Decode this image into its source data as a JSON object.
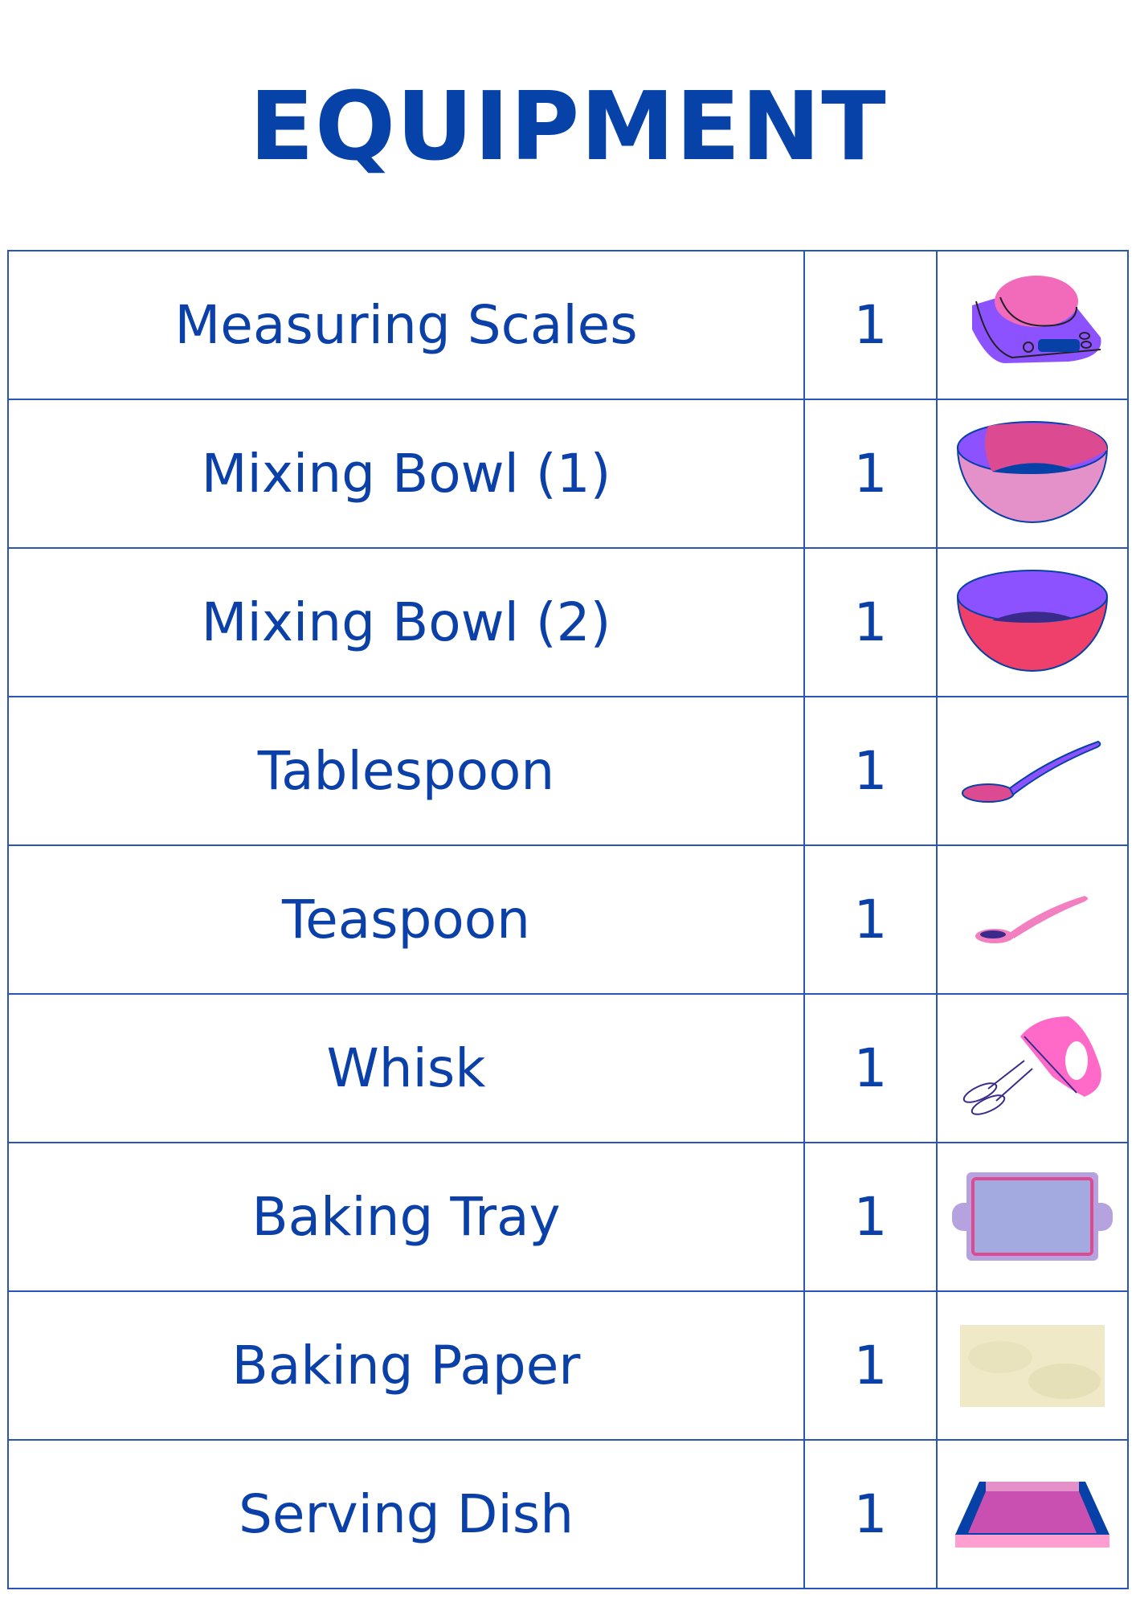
{
  "title": "EQUIPMENT",
  "items": [
    {
      "name": "Measuring Scales",
      "qty": "1",
      "icon": "kitchen-scale-icon"
    },
    {
      "name": "Mixing Bowl (1)",
      "qty": "1",
      "icon": "pink-bowl-icon"
    },
    {
      "name": "Mixing Bowl (2)",
      "qty": "1",
      "icon": "red-bowl-icon"
    },
    {
      "name": "Tablespoon",
      "qty": "1",
      "icon": "tablespoon-icon"
    },
    {
      "name": "Teaspoon",
      "qty": "1",
      "icon": "teaspoon-icon"
    },
    {
      "name": "Whisk",
      "qty": "1",
      "icon": "hand-mixer-icon"
    },
    {
      "name": "Baking Tray",
      "qty": "1",
      "icon": "baking-tray-icon"
    },
    {
      "name": "Baking Paper",
      "qty": "1",
      "icon": "baking-paper-icon"
    },
    {
      "name": "Serving Dish",
      "qty": "1",
      "icon": "serving-dish-icon"
    }
  ],
  "colors": {
    "text": "#0742a8",
    "border": "#2a55b8",
    "purple": "#8c52ff",
    "pink": "#f26bba"
  }
}
